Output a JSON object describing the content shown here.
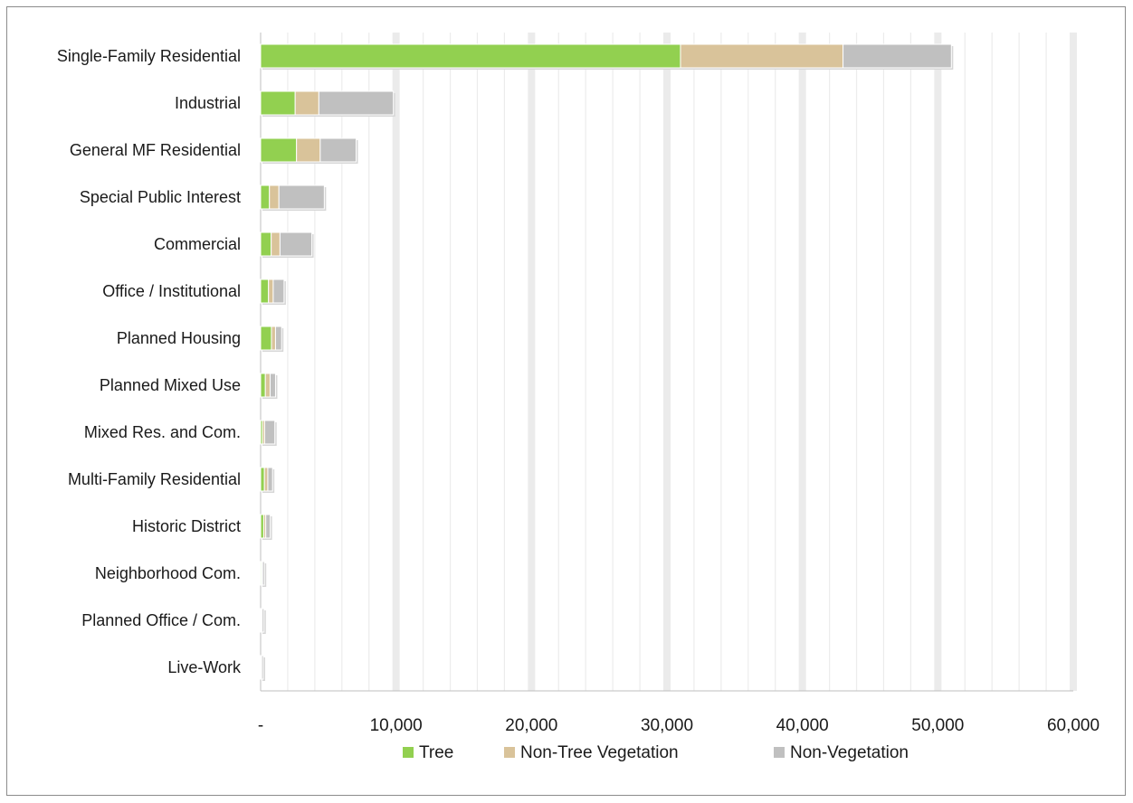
{
  "chart_data": {
    "type": "bar",
    "orientation": "horizontal",
    "stacked": true,
    "title": "",
    "xlabel": "",
    "ylabel": "",
    "xlim": [
      0,
      60000
    ],
    "x_ticks": [
      0,
      10000,
      20000,
      30000,
      40000,
      50000,
      60000
    ],
    "x_tick_labels": [
      "-",
      "10,000",
      "20,000",
      "30,000",
      "40,000",
      "50,000",
      "60,000"
    ],
    "grid": true,
    "legend_position": "bottom",
    "categories": [
      "Single-Family Residential",
      "Industrial",
      "General MF Residential",
      "Special Public Interest",
      "Commercial",
      "Office / Institutional",
      "Planned Housing",
      "Planned Mixed Use",
      "Mixed Res. and Com.",
      "Multi-Family Residential",
      "Historic District",
      "Neighborhood Com.",
      "Planned Office / Com.",
      "Live-Work"
    ],
    "series": [
      {
        "name": "Tree",
        "color": "#92d050",
        "values": [
          31000,
          2550,
          2650,
          650,
          780,
          580,
          800,
          350,
          150,
          280,
          230,
          80,
          60,
          40
        ]
      },
      {
        "name": "Non-Tree Vegetation",
        "color": "#d9c39a",
        "values": [
          12000,
          1750,
          1750,
          700,
          650,
          350,
          300,
          350,
          150,
          250,
          150,
          60,
          60,
          40
        ]
      },
      {
        "name": "Non-Vegetation",
        "color": "#c0c0c0",
        "values": [
          8000,
          5500,
          2650,
          3350,
          2350,
          800,
          450,
          400,
          750,
          350,
          330,
          140,
          130,
          120
        ]
      }
    ]
  }
}
